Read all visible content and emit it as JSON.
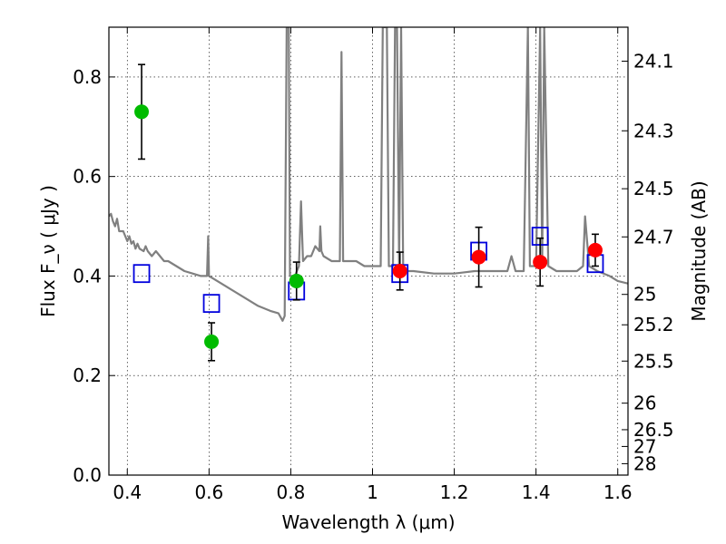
{
  "chart_data": {
    "type": "scatter",
    "xlabel": "Wavelength  λ (μm)",
    "ylabel": "Flux  F_ν  ( μJy )",
    "ylabel_right": "Magnitude (AB)",
    "xlim": [
      0.355,
      1.625
    ],
    "ylim": [
      0.0,
      0.9
    ],
    "x_ticks": [
      0.4,
      0.6,
      0.8,
      1.0,
      1.2,
      1.4,
      1.6
    ],
    "x_tick_labels": [
      "0.4",
      "0.6",
      "0.8",
      "1",
      "1.2",
      "1.4",
      "1.6"
    ],
    "y_ticks": [
      0.0,
      0.2,
      0.4,
      0.6,
      0.8
    ],
    "y_tick_labels": [
      "0.0",
      "0.2",
      "0.4",
      "0.6",
      "0.8"
    ],
    "mag_ticks": [
      24.1,
      24.3,
      24.5,
      24.7,
      25,
      25.2,
      25.5,
      26,
      26.5,
      27,
      28
    ],
    "mag_tick_labels": [
      "24.1",
      "24.3",
      "24.5",
      "24.7",
      "25",
      "25.2",
      "25.5",
      "26",
      "26.5",
      "27",
      "28"
    ],
    "grid": true,
    "series": [
      {
        "marker": "circle",
        "color": "#00bb00",
        "points": [
          {
            "x": 0.435,
            "y": 0.73,
            "err": 0.095
          },
          {
            "x": 0.606,
            "y": 0.268,
            "err": 0.038
          },
          {
            "x": 0.814,
            "y": 0.39,
            "err": 0.038
          }
        ]
      },
      {
        "marker": "circle",
        "color": "#ff0000",
        "points": [
          {
            "x": 1.067,
            "y": 0.41,
            "err": 0.038
          },
          {
            "x": 1.26,
            "y": 0.438,
            "err": 0.06
          },
          {
            "x": 1.41,
            "y": 0.428,
            "err": 0.048
          },
          {
            "x": 1.545,
            "y": 0.452,
            "err": 0.032
          }
        ]
      },
      {
        "marker": "open-square",
        "color": "#0000dd",
        "points": [
          {
            "x": 0.435,
            "y": 0.405
          },
          {
            "x": 0.606,
            "y": 0.345
          },
          {
            "x": 0.814,
            "y": 0.37
          },
          {
            "x": 1.067,
            "y": 0.405
          },
          {
            "x": 1.26,
            "y": 0.45
          },
          {
            "x": 1.41,
            "y": 0.48
          },
          {
            "x": 1.545,
            "y": 0.425
          }
        ]
      },
      {
        "type": "line",
        "color": "#808080",
        "points": [
          [
            0.355,
            0.52
          ],
          [
            0.36,
            0.525
          ],
          [
            0.365,
            0.51
          ],
          [
            0.37,
            0.5
          ],
          [
            0.375,
            0.515
          ],
          [
            0.38,
            0.49
          ],
          [
            0.39,
            0.49
          ],
          [
            0.4,
            0.47
          ],
          [
            0.405,
            0.48
          ],
          [
            0.41,
            0.465
          ],
          [
            0.415,
            0.47
          ],
          [
            0.42,
            0.455
          ],
          [
            0.425,
            0.465
          ],
          [
            0.43,
            0.455
          ],
          [
            0.44,
            0.45
          ],
          [
            0.445,
            0.46
          ],
          [
            0.45,
            0.45
          ],
          [
            0.46,
            0.44
          ],
          [
            0.47,
            0.45
          ],
          [
            0.48,
            0.44
          ],
          [
            0.49,
            0.43
          ],
          [
            0.5,
            0.43
          ],
          [
            0.52,
            0.42
          ],
          [
            0.54,
            0.41
          ],
          [
            0.56,
            0.405
          ],
          [
            0.58,
            0.4
          ],
          [
            0.595,
            0.4
          ],
          [
            0.598,
            0.48
          ],
          [
            0.6,
            0.4
          ],
          [
            0.62,
            0.39
          ],
          [
            0.65,
            0.375
          ],
          [
            0.68,
            0.36
          ],
          [
            0.7,
            0.35
          ],
          [
            0.72,
            0.34
          ],
          [
            0.75,
            0.33
          ],
          [
            0.77,
            0.325
          ],
          [
            0.78,
            0.31
          ],
          [
            0.785,
            0.32
          ],
          [
            0.79,
            0.9
          ],
          [
            0.795,
            0.9
          ],
          [
            0.798,
            0.4
          ],
          [
            0.81,
            0.4
          ],
          [
            0.82,
            0.42
          ],
          [
            0.825,
            0.55
          ],
          [
            0.83,
            0.43
          ],
          [
            0.84,
            0.44
          ],
          [
            0.85,
            0.44
          ],
          [
            0.86,
            0.46
          ],
          [
            0.87,
            0.45
          ],
          [
            0.872,
            0.5
          ],
          [
            0.875,
            0.45
          ],
          [
            0.88,
            0.44
          ],
          [
            0.9,
            0.43
          ],
          [
            0.92,
            0.43
          ],
          [
            0.924,
            0.85
          ],
          [
            0.928,
            0.43
          ],
          [
            0.94,
            0.43
          ],
          [
            0.96,
            0.43
          ],
          [
            0.98,
            0.42
          ],
          [
            1.0,
            0.42
          ],
          [
            1.02,
            0.42
          ],
          [
            1.025,
            0.9
          ],
          [
            1.035,
            0.9
          ],
          [
            1.04,
            0.42
          ],
          [
            1.05,
            0.42
          ],
          [
            1.055,
            0.9
          ],
          [
            1.06,
            0.9
          ],
          [
            1.065,
            0.42
          ],
          [
            1.07,
            0.9
          ],
          [
            1.075,
            0.41
          ],
          [
            1.1,
            0.41
          ],
          [
            1.15,
            0.405
          ],
          [
            1.2,
            0.405
          ],
          [
            1.25,
            0.41
          ],
          [
            1.3,
            0.41
          ],
          [
            1.33,
            0.41
          ],
          [
            1.34,
            0.44
          ],
          [
            1.35,
            0.41
          ],
          [
            1.37,
            0.41
          ],
          [
            1.38,
            0.9
          ],
          [
            1.385,
            0.42
          ],
          [
            1.4,
            0.42
          ],
          [
            1.41,
            0.9
          ],
          [
            1.415,
            0.42
          ],
          [
            1.42,
            0.9
          ],
          [
            1.43,
            0.42
          ],
          [
            1.45,
            0.41
          ],
          [
            1.5,
            0.41
          ],
          [
            1.515,
            0.42
          ],
          [
            1.52,
            0.52
          ],
          [
            1.53,
            0.42
          ],
          [
            1.55,
            0.41
          ],
          [
            1.58,
            0.4
          ],
          [
            1.6,
            0.39
          ],
          [
            1.625,
            0.385
          ]
        ]
      }
    ]
  }
}
